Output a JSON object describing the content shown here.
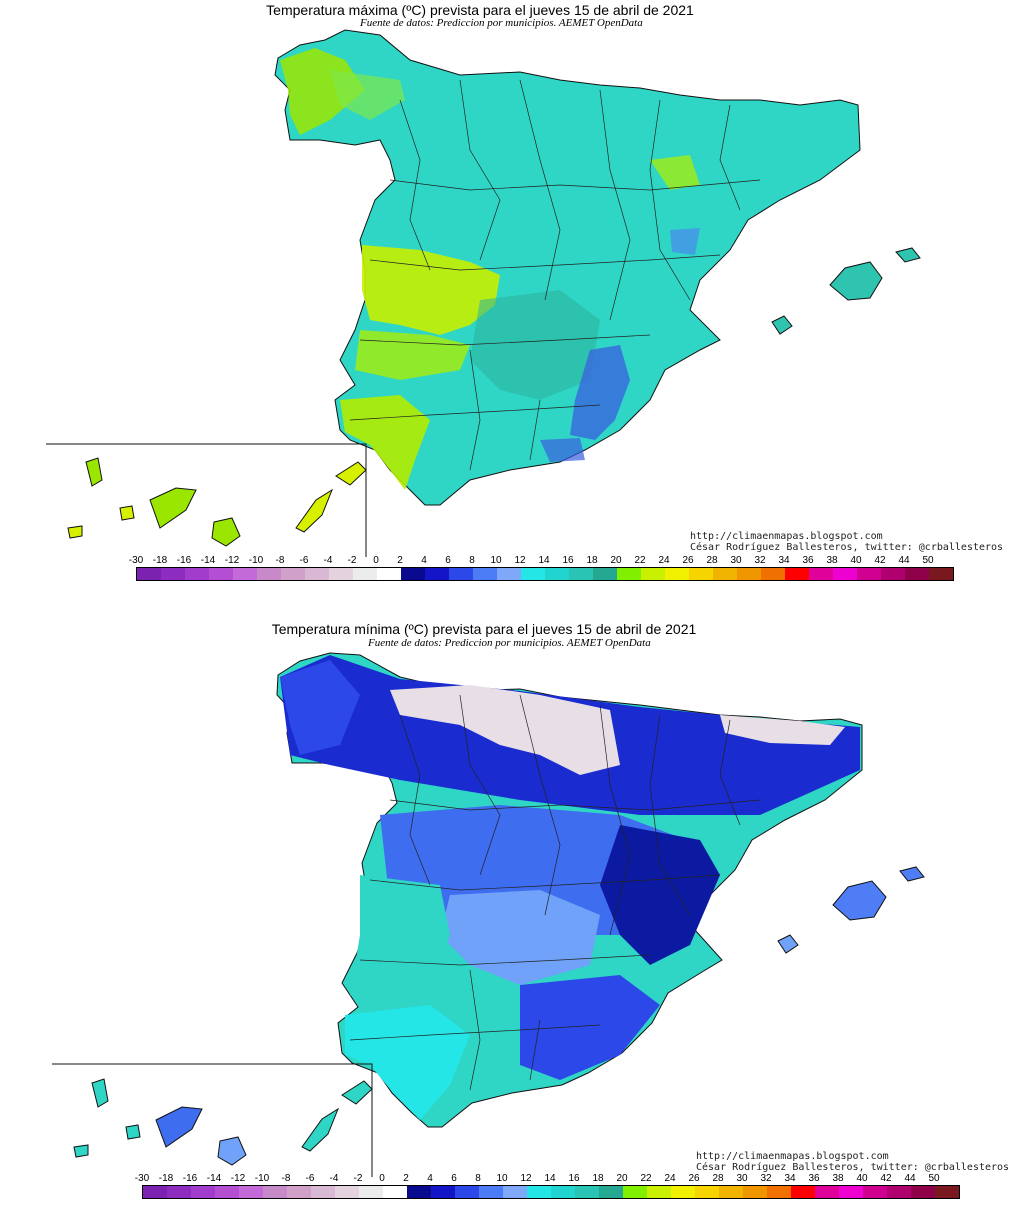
{
  "maps": [
    {
      "title": "Temperatura máxima (ºC) prevista para el jueves 15 de abril de 2021",
      "subtitle": "Fuente de datos: Prediccion por municipios. AEMET OpenData",
      "credit_url": "http://climaenmapas.blogspot.com",
      "credit_author": "César Rodríguez Ballesteros, twitter: @crballesteros",
      "mainland_fill": "#2fd6c6",
      "patches": [
        {
          "name": "west-warm",
          "color": "#c8f000"
        },
        {
          "name": "galicia-warm",
          "color": "#9be600"
        },
        {
          "name": "south-warm",
          "color": "#b4ec00"
        },
        {
          "name": "south-east-cold",
          "color": "#3a5fe0"
        },
        {
          "name": "central-green",
          "color": "#2bb39b"
        },
        {
          "name": "balearics",
          "color": "#2fc4b0"
        },
        {
          "name": "canary",
          "color": "#d6f000"
        }
      ]
    },
    {
      "title": "Temperatura mínima (ºC) prevista para el jueves 15 de abril de 2021",
      "subtitle": "Fuente de datos: Prediccion por municipios. AEMET OpenData",
      "credit_url": "http://climaenmapas.blogspot.com",
      "credit_author": "César Rodríguez Ballesteros, twitter: @crballesteros",
      "mainland_fill": "#2fd6c6",
      "patches": [
        {
          "name": "north-deep-blue",
          "color": "#1a2bd0"
        },
        {
          "name": "north-snow",
          "color": "#e8dfe6"
        },
        {
          "name": "centre-blue",
          "color": "#3f6df0"
        },
        {
          "name": "centre-light-blue",
          "color": "#6fa2f8"
        },
        {
          "name": "east-dark",
          "color": "#0b1aa0"
        },
        {
          "name": "balearics",
          "color": "#4f7df5"
        },
        {
          "name": "canary",
          "color": "#2fd6c6"
        }
      ]
    }
  ],
  "legend": {
    "labels": [
      "-30",
      "-18",
      "-16",
      "-14",
      "-12",
      "-10",
      "-8",
      "-6",
      "-4",
      "-2",
      "0",
      "2",
      "4",
      "6",
      "8",
      "10",
      "12",
      "14",
      "16",
      "18",
      "20",
      "22",
      "24",
      "26",
      "28",
      "30",
      "32",
      "34",
      "36",
      "38",
      "40",
      "42",
      "44",
      "50"
    ],
    "colors": [
      "#7b22b0",
      "#8e2cbf",
      "#a23ccc",
      "#b44ed2",
      "#c46ad8",
      "#c889c9",
      "#d1a0c9",
      "#d9b8d3",
      "#e4d2de",
      "#ececec",
      "#ffffff",
      "#0a0a8f",
      "#1414c8",
      "#2c48e8",
      "#4c7cf5",
      "#7fa8f8",
      "#25e6e6",
      "#22d4cf",
      "#2ac4b4",
      "#25a892",
      "#80f000",
      "#c8f000",
      "#f0f000",
      "#f5d400",
      "#f0b400",
      "#f09600",
      "#f07000",
      "#ff0000",
      "#e0009a",
      "#ee00d0",
      "#d00090",
      "#b0006f",
      "#8e0048",
      "#7a1820"
    ]
  }
}
